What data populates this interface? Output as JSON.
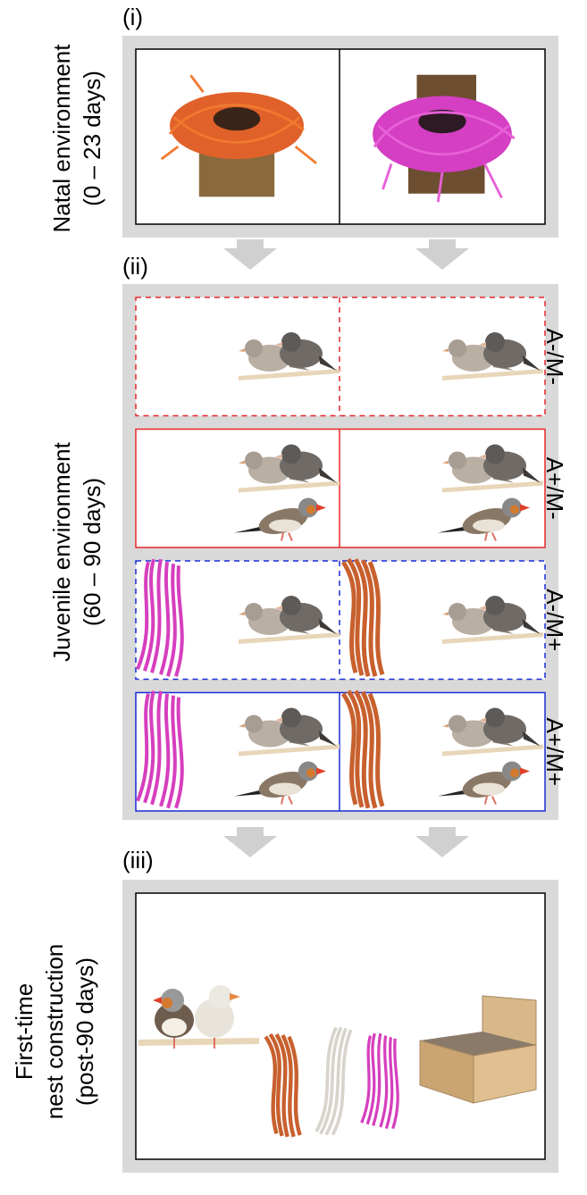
{
  "panels": [
    {
      "label": "(i)",
      "title": [
        "Natal environment",
        "(0 – 23 days)"
      ]
    },
    {
      "label": "(ii)",
      "title": [
        "Juvenile environment",
        "(60 – 90 days)"
      ]
    },
    {
      "label": "(iii)",
      "title": [
        "First-time",
        "nest construction",
        "(post-90 days)"
      ]
    }
  ],
  "conditions": [
    "A-/M-",
    "A+/M-",
    "A-/M+",
    "A+/M+"
  ]
}
